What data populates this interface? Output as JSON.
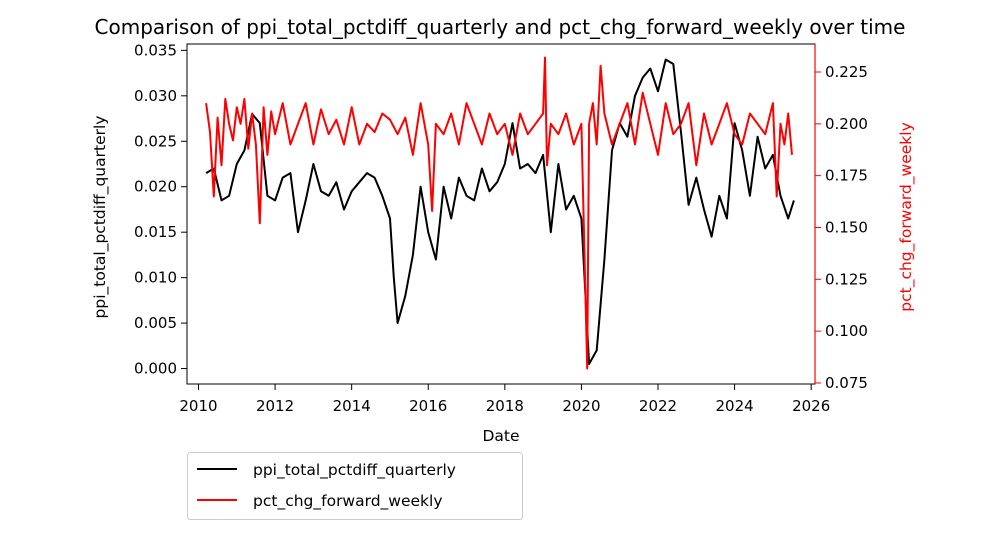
{
  "chart_data": {
    "type": "line",
    "title": "Comparison of ppi_total_pctdiff_quarterly and pct_chg_forward_weekly over time",
    "xlabel": "Date",
    "ylabel_left": "ppi_total_pctdiff_quarterly",
    "ylabel_right": "pct_chg_forward_weekly",
    "xlim": [
      2009.7,
      2026.1
    ],
    "ylim_left": [
      -0.0017,
      0.0357
    ],
    "ylim_right": [
      0.0745,
      0.2385
    ],
    "x_ticks": [
      2010,
      2012,
      2014,
      2016,
      2018,
      2020,
      2022,
      2024,
      2026
    ],
    "x_tick_labels": [
      "2010",
      "2012",
      "2014",
      "2016",
      "2018",
      "2020",
      "2022",
      "2024",
      "2026"
    ],
    "y_left_ticks": [
      0.0,
      0.005,
      0.01,
      0.015,
      0.02,
      0.025,
      0.03,
      0.035
    ],
    "y_left_tick_labels": [
      "0.000",
      "0.005",
      "0.010",
      "0.015",
      "0.020",
      "0.025",
      "0.030",
      "0.035"
    ],
    "y_right_ticks": [
      0.075,
      0.1,
      0.125,
      0.15,
      0.175,
      0.2,
      0.225
    ],
    "y_right_tick_labels": [
      "0.075",
      "0.100",
      "0.125",
      "0.150",
      "0.175",
      "0.200",
      "0.225"
    ],
    "grid": false,
    "legend_placement": "below-left",
    "series": [
      {
        "name": "ppi_total_pctdiff_quarterly",
        "color": "#000000",
        "axis": "left",
        "x": [
          2010.2,
          2010.4,
          2010.6,
          2010.8,
          2011.0,
          2011.2,
          2011.4,
          2011.6,
          2011.8,
          2012.0,
          2012.2,
          2012.4,
          2012.6,
          2012.8,
          2013.0,
          2013.2,
          2013.4,
          2013.6,
          2013.8,
          2014.0,
          2014.2,
          2014.4,
          2014.6,
          2014.8,
          2015.0,
          2015.1,
          2015.2,
          2015.4,
          2015.6,
          2015.8,
          2016.0,
          2016.2,
          2016.4,
          2016.6,
          2016.8,
          2017.0,
          2017.2,
          2017.4,
          2017.6,
          2017.8,
          2018.0,
          2018.2,
          2018.4,
          2018.6,
          2018.8,
          2019.0,
          2019.2,
          2019.4,
          2019.6,
          2019.8,
          2020.0,
          2020.2,
          2020.4,
          2020.6,
          2020.8,
          2021.0,
          2021.2,
          2021.4,
          2021.6,
          2021.8,
          2022.0,
          2022.2,
          2022.4,
          2022.6,
          2022.8,
          2023.0,
          2023.2,
          2023.4,
          2023.6,
          2023.8,
          2024.0,
          2024.2,
          2024.4,
          2024.6,
          2024.8,
          2025.0,
          2025.2,
          2025.4,
          2025.55
        ],
        "y": [
          0.0215,
          0.022,
          0.0185,
          0.019,
          0.0225,
          0.024,
          0.028,
          0.027,
          0.019,
          0.0185,
          0.021,
          0.0215,
          0.015,
          0.0185,
          0.0225,
          0.0195,
          0.019,
          0.0205,
          0.0175,
          0.0195,
          0.0205,
          0.0215,
          0.021,
          0.019,
          0.0165,
          0.01,
          0.005,
          0.008,
          0.0125,
          0.02,
          0.015,
          0.012,
          0.02,
          0.0165,
          0.021,
          0.019,
          0.0185,
          0.022,
          0.0195,
          0.0205,
          0.0225,
          0.027,
          0.022,
          0.0225,
          0.0215,
          0.0235,
          0.015,
          0.0225,
          0.0175,
          0.019,
          0.0165,
          0.0005,
          0.002,
          0.012,
          0.024,
          0.027,
          0.0255,
          0.03,
          0.032,
          0.033,
          0.0305,
          0.034,
          0.0335,
          0.026,
          0.018,
          0.021,
          0.0175,
          0.0145,
          0.019,
          0.0165,
          0.027,
          0.024,
          0.019,
          0.0255,
          0.022,
          0.0235,
          0.019,
          0.0165,
          0.0185
        ]
      },
      {
        "name": "pct_chg_forward_weekly",
        "color": "#ff0000",
        "axis": "right",
        "x": [
          2010.2,
          2010.3,
          2010.4,
          2010.5,
          2010.6,
          2010.7,
          2010.8,
          2010.9,
          2011.0,
          2011.1,
          2011.2,
          2011.3,
          2011.4,
          2011.5,
          2011.6,
          2011.7,
          2011.8,
          2011.9,
          2012.0,
          2012.2,
          2012.4,
          2012.6,
          2012.8,
          2013.0,
          2013.2,
          2013.4,
          2013.6,
          2013.8,
          2014.0,
          2014.2,
          2014.4,
          2014.6,
          2014.8,
          2015.0,
          2015.2,
          2015.4,
          2015.6,
          2015.8,
          2016.0,
          2016.1,
          2016.2,
          2016.4,
          2016.6,
          2016.8,
          2017.0,
          2017.2,
          2017.4,
          2017.6,
          2017.8,
          2018.0,
          2018.2,
          2018.4,
          2018.6,
          2018.8,
          2019.0,
          2019.05,
          2019.1,
          2019.2,
          2019.4,
          2019.6,
          2019.8,
          2020.0,
          2020.15,
          2020.2,
          2020.3,
          2020.4,
          2020.5,
          2020.6,
          2020.8,
          2021.0,
          2021.2,
          2021.4,
          2021.6,
          2021.8,
          2022.0,
          2022.2,
          2022.4,
          2022.6,
          2022.8,
          2023.0,
          2023.2,
          2023.4,
          2023.6,
          2023.8,
          2024.0,
          2024.2,
          2024.4,
          2024.6,
          2024.8,
          2025.0,
          2025.1,
          2025.2,
          2025.3,
          2025.4,
          2025.5
        ],
        "y": [
          0.21,
          0.196,
          0.165,
          0.203,
          0.18,
          0.212,
          0.2,
          0.192,
          0.208,
          0.2,
          0.212,
          0.188,
          0.205,
          0.19,
          0.152,
          0.208,
          0.185,
          0.206,
          0.195,
          0.21,
          0.19,
          0.2,
          0.21,
          0.19,
          0.207,
          0.195,
          0.202,
          0.19,
          0.208,
          0.19,
          0.2,
          0.196,
          0.205,
          0.202,
          0.195,
          0.203,
          0.185,
          0.21,
          0.19,
          0.158,
          0.2,
          0.195,
          0.205,
          0.19,
          0.21,
          0.2,
          0.19,
          0.205,
          0.195,
          0.2,
          0.185,
          0.205,
          0.195,
          0.2,
          0.205,
          0.232,
          0.18,
          0.2,
          0.195,
          0.205,
          0.19,
          0.2,
          0.082,
          0.2,
          0.21,
          0.19,
          0.228,
          0.205,
          0.19,
          0.2,
          0.21,
          0.19,
          0.215,
          0.2,
          0.185,
          0.21,
          0.195,
          0.2,
          0.21,
          0.18,
          0.205,
          0.19,
          0.2,
          0.21,
          0.195,
          0.19,
          0.205,
          0.2,
          0.195,
          0.21,
          0.165,
          0.2,
          0.19,
          0.205,
          0.185
        ]
      }
    ]
  }
}
